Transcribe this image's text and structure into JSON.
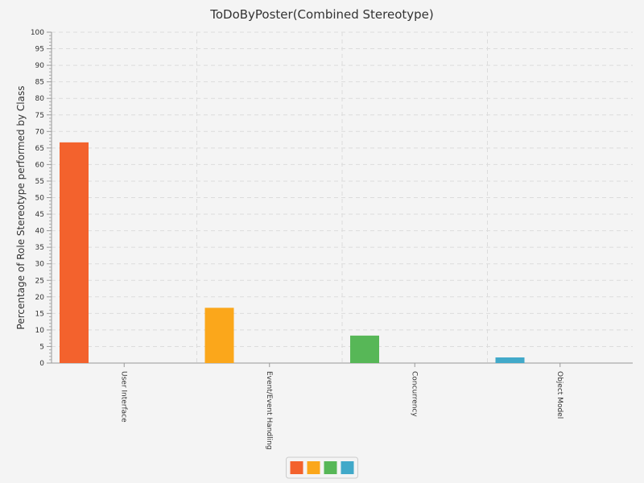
{
  "chart_data": {
    "type": "bar",
    "title": "ToDoByPoster(Combined Stereotype)",
    "xlabel": "",
    "ylabel": "Percentage of Role Stereotype performed by Class",
    "ylim": [
      0,
      100
    ],
    "y_ticks": [
      0,
      5,
      10,
      15,
      20,
      25,
      30,
      35,
      40,
      45,
      50,
      55,
      60,
      65,
      70,
      75,
      80,
      85,
      90,
      95,
      100
    ],
    "grid": true,
    "legend_position": "bottom-center",
    "categories": [
      "User Interface",
      "Event/Event Handling",
      "Concurrency",
      "Object Model"
    ],
    "category_labels_rotated": true,
    "values": [
      66.7,
      16.7,
      8.3,
      1.7
    ],
    "colors": [
      "#f3622d",
      "#fba71b",
      "#57b757",
      "#41a9c9"
    ]
  }
}
